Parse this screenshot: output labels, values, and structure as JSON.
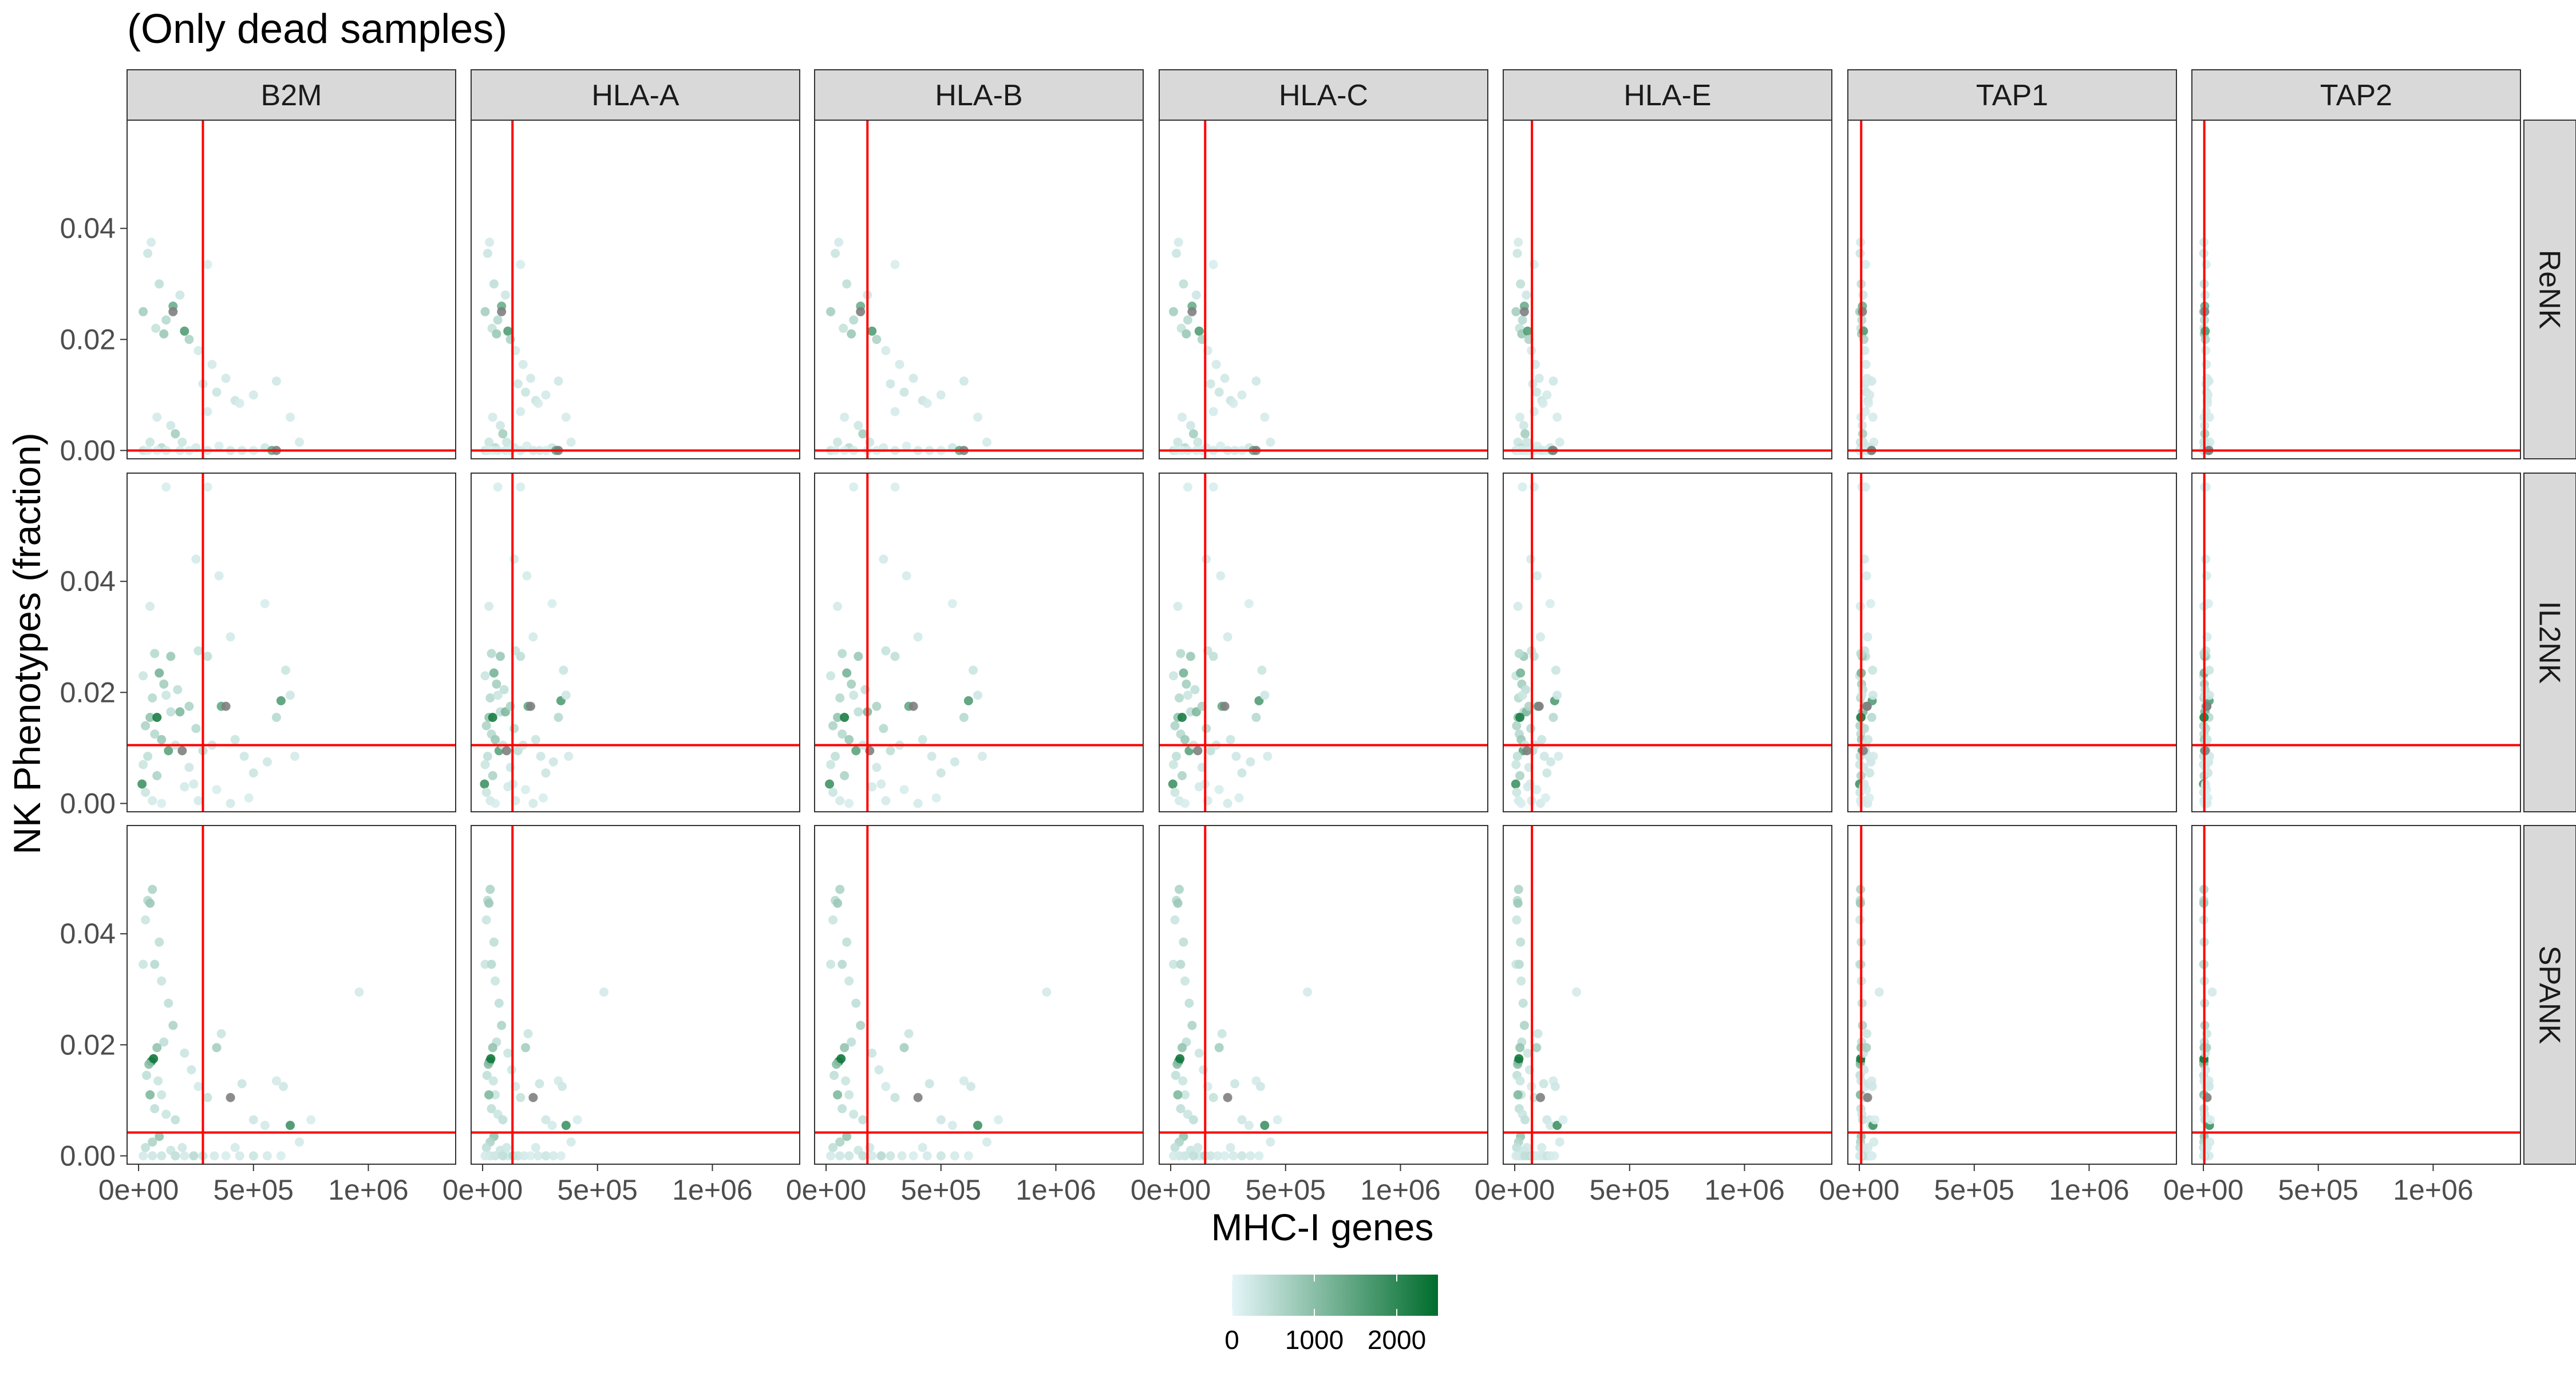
{
  "chart_data": {
    "type": "scatter",
    "title": "(Only dead samples)",
    "xlabel": "MHC-I genes",
    "ylabel": "NK Phenotypes (fraction)",
    "column_facets": [
      "B2M",
      "HLA-A",
      "HLA-B",
      "HLA-C",
      "HLA-E",
      "TAP1",
      "TAP2"
    ],
    "row_facets": [
      "ReNK",
      "IL2NK",
      "SPANK"
    ],
    "x_ticks": [
      0,
      500000,
      1000000
    ],
    "x_tick_labels": [
      "0e+00",
      "5e+05",
      "1e+06"
    ],
    "x_range": [
      -50000,
      1380000
    ],
    "y_ticks": [
      0,
      0.02,
      0.04
    ],
    "y_tick_labels": [
      "0.00",
      "0.02",
      "0.04"
    ],
    "y_ranges": {
      "ReNK": [
        -0.0015,
        0.0595
      ],
      "IL2NK": [
        -0.0015,
        0.0595
      ],
      "SPANK": [
        -0.0015,
        0.0595
      ]
    },
    "reference_lines": {
      "color": "#ff0000",
      "vertical_x": {
        "B2M": 280000,
        "HLA-A": 130000,
        "HLA-B": 180000,
        "HLA-C": 150000,
        "HLA-E": 75000,
        "TAP1": 8000,
        "TAP2": 4000
      },
      "horizontal_y": {
        "ReNK": 0.0,
        "IL2NK": 0.0105,
        "SPANK": 0.0042
      }
    },
    "color_scale": {
      "variable": "",
      "low": "#e5f5f9",
      "high": "#006d2c",
      "na_color": "#7f7f7f",
      "limits": [
        0,
        2500
      ],
      "ticks": [
        0,
        1000,
        2000
      ],
      "tick_labels": [
        "0",
        "1000",
        "2000"
      ]
    },
    "points": {
      "ReNK": [
        [
          0.04,
          0.0355,
          300
        ],
        [
          0.055,
          0.0375,
          200
        ],
        [
          0.09,
          0.03,
          400
        ],
        [
          0.02,
          0.025,
          700
        ],
        [
          0.075,
          0.022,
          350
        ],
        [
          0.12,
          0.0235,
          500
        ],
        [
          0.15,
          0.026,
          1300
        ],
        [
          0.11,
          0.021,
          800
        ],
        [
          0.18,
          0.028,
          250
        ],
        [
          0.2,
          0.0215,
          1600
        ],
        [
          0.22,
          0.02,
          600
        ],
        [
          0.3,
          0.0335,
          150
        ],
        [
          0.26,
          0.018,
          200
        ],
        [
          0.28,
          0.012,
          250
        ],
        [
          0.34,
          0.0105,
          300
        ],
        [
          0.38,
          0.013,
          220
        ],
        [
          0.42,
          0.009,
          280
        ],
        [
          0.5,
          0.01,
          200
        ],
        [
          0.6,
          0.0125,
          240
        ],
        [
          0.66,
          0.006,
          180
        ],
        [
          0.7,
          0.0015,
          200
        ],
        [
          0.3,
          0.007,
          180
        ],
        [
          0.08,
          0.006,
          200
        ],
        [
          0.14,
          0.0045,
          250
        ],
        [
          0.05,
          0.0015,
          300
        ],
        [
          0.1,
          0.0005,
          500
        ],
        [
          0.16,
          0.003,
          700
        ],
        [
          0.25,
          0.0005,
          200
        ],
        [
          0.35,
          0.0008,
          150
        ],
        [
          0.45,
          0.0,
          200
        ],
        [
          0.55,
          0.0005,
          250
        ],
        [
          0.02,
          0.0,
          300
        ],
        [
          0.04,
          0.0,
          150
        ],
        [
          0.08,
          0.0,
          120
        ],
        [
          0.12,
          0.0,
          180
        ],
        [
          0.18,
          0.0,
          160
        ],
        [
          0.22,
          0.0,
          140
        ],
        [
          0.3,
          0.0,
          200
        ],
        [
          0.4,
          0.0,
          220
        ],
        [
          0.5,
          0.0,
          150
        ],
        [
          0.58,
          0.0,
          1400
        ],
        [
          0.15,
          0.025,
          null
        ],
        [
          0.6,
          0.0,
          null
        ],
        [
          0.19,
          0.0015,
          300
        ],
        [
          0.44,
          0.0085,
          180
        ],
        [
          0.32,
          0.0155,
          200
        ]
      ],
      "IL2NK": [
        [
          0.05,
          0.0355,
          200
        ],
        [
          0.12,
          0.057,
          150
        ],
        [
          0.3,
          0.057,
          150
        ],
        [
          0.25,
          0.044,
          200
        ],
        [
          0.35,
          0.041,
          180
        ],
        [
          0.55,
          0.036,
          150
        ],
        [
          0.4,
          0.03,
          200
        ],
        [
          0.02,
          0.023,
          300
        ],
        [
          0.06,
          0.019,
          500
        ],
        [
          0.09,
          0.0235,
          1200
        ],
        [
          0.11,
          0.0215,
          700
        ],
        [
          0.14,
          0.0165,
          400
        ],
        [
          0.05,
          0.0155,
          900
        ],
        [
          0.03,
          0.014,
          600
        ],
        [
          0.07,
          0.0125,
          500
        ],
        [
          0.1,
          0.0115,
          800
        ],
        [
          0.13,
          0.0095,
          1500
        ],
        [
          0.16,
          0.0105,
          300
        ],
        [
          0.04,
          0.0085,
          400
        ],
        [
          0.02,
          0.007,
          300
        ],
        [
          0.08,
          0.005,
          600
        ],
        [
          0.015,
          0.0035,
          1800
        ],
        [
          0.03,
          0.002,
          300
        ],
        [
          0.06,
          0.0005,
          200
        ],
        [
          0.1,
          0.0,
          150
        ],
        [
          0.18,
          0.0165,
          1100
        ],
        [
          0.22,
          0.0175,
          600
        ],
        [
          0.25,
          0.0135,
          500
        ],
        [
          0.28,
          0.0095,
          400
        ],
        [
          0.32,
          0.0105,
          300
        ],
        [
          0.36,
          0.0175,
          1400
        ],
        [
          0.42,
          0.0115,
          300
        ],
        [
          0.46,
          0.0085,
          250
        ],
        [
          0.5,
          0.0055,
          300
        ],
        [
          0.56,
          0.0075,
          250
        ],
        [
          0.6,
          0.0155,
          500
        ],
        [
          0.62,
          0.0185,
          1600
        ],
        [
          0.64,
          0.024,
          300
        ],
        [
          0.66,
          0.0195,
          250
        ],
        [
          0.68,
          0.0085,
          200
        ],
        [
          0.2,
          0.003,
          200
        ],
        [
          0.26,
          0.0005,
          200
        ],
        [
          0.34,
          0.0025,
          150
        ],
        [
          0.4,
          0.0,
          200
        ],
        [
          0.48,
          0.001,
          150
        ],
        [
          0.22,
          0.0065,
          250
        ],
        [
          0.17,
          0.0205,
          400
        ],
        [
          0.12,
          0.0195,
          300
        ],
        [
          0.08,
          0.0155,
          2200
        ],
        [
          0.38,
          0.0175,
          null
        ],
        [
          0.19,
          0.0095,
          null
        ],
        [
          0.24,
          0.0035,
          200
        ],
        [
          0.3,
          0.0265,
          400
        ],
        [
          0.26,
          0.0275,
          350
        ],
        [
          0.14,
          0.0265,
          800
        ],
        [
          0.07,
          0.027,
          500
        ]
      ],
      "SPANK": [
        [
          0.04,
          0.046,
          500
        ],
        [
          0.06,
          0.048,
          600
        ],
        [
          0.05,
          0.0455,
          800
        ],
        [
          0.03,
          0.0425,
          300
        ],
        [
          0.09,
          0.0385,
          400
        ],
        [
          0.02,
          0.0345,
          300
        ],
        [
          0.07,
          0.0345,
          500
        ],
        [
          0.1,
          0.0315,
          300
        ],
        [
          0.13,
          0.0275,
          400
        ],
        [
          0.15,
          0.0235,
          600
        ],
        [
          0.11,
          0.0205,
          400
        ],
        [
          0.08,
          0.0195,
          900
        ],
        [
          0.055,
          0.017,
          2000
        ],
        [
          0.045,
          0.0165,
          1000
        ],
        [
          0.065,
          0.0175,
          2300
        ],
        [
          0.035,
          0.0145,
          400
        ],
        [
          0.085,
          0.0135,
          300
        ],
        [
          0.1,
          0.011,
          300
        ],
        [
          0.05,
          0.011,
          1100
        ],
        [
          0.07,
          0.0085,
          400
        ],
        [
          0.12,
          0.0075,
          300
        ],
        [
          0.16,
          0.0065,
          400
        ],
        [
          0.09,
          0.0035,
          900
        ],
        [
          0.06,
          0.0025,
          600
        ],
        [
          0.03,
          0.0015,
          400
        ],
        [
          0.14,
          0.001,
          300
        ],
        [
          0.2,
          0.0185,
          300
        ],
        [
          0.23,
          0.0155,
          250
        ],
        [
          0.26,
          0.0125,
          200
        ],
        [
          0.3,
          0.0105,
          350
        ],
        [
          0.34,
          0.0195,
          700
        ],
        [
          0.36,
          0.022,
          300
        ],
        [
          0.4,
          0.0105,
          null
        ],
        [
          0.45,
          0.013,
          300
        ],
        [
          0.5,
          0.0065,
          250
        ],
        [
          0.55,
          0.0055,
          200
        ],
        [
          0.6,
          0.0135,
          200
        ],
        [
          0.63,
          0.0125,
          250
        ],
        [
          0.66,
          0.0055,
          1800
        ],
        [
          0.7,
          0.0025,
          200
        ],
        [
          0.75,
          0.0065,
          150
        ],
        [
          0.2,
          0.0,
          200
        ],
        [
          0.24,
          0.0,
          500
        ],
        [
          0.28,
          0.0,
          300
        ],
        [
          0.33,
          0.0,
          200
        ],
        [
          0.38,
          0.0,
          150
        ],
        [
          0.44,
          0.0,
          200
        ],
        [
          0.5,
          0.0,
          300
        ],
        [
          0.56,
          0.0,
          200
        ],
        [
          0.62,
          0.0,
          150
        ],
        [
          0.1,
          0.0,
          300
        ],
        [
          0.06,
          0.0,
          250
        ],
        [
          0.16,
          0.0,
          400
        ],
        [
          0.02,
          0.0,
          200
        ],
        [
          0.19,
          0.0015,
          250
        ],
        [
          0.42,
          0.0015,
          200
        ],
        [
          0.96,
          0.0295,
          200
        ]
      ]
    }
  }
}
